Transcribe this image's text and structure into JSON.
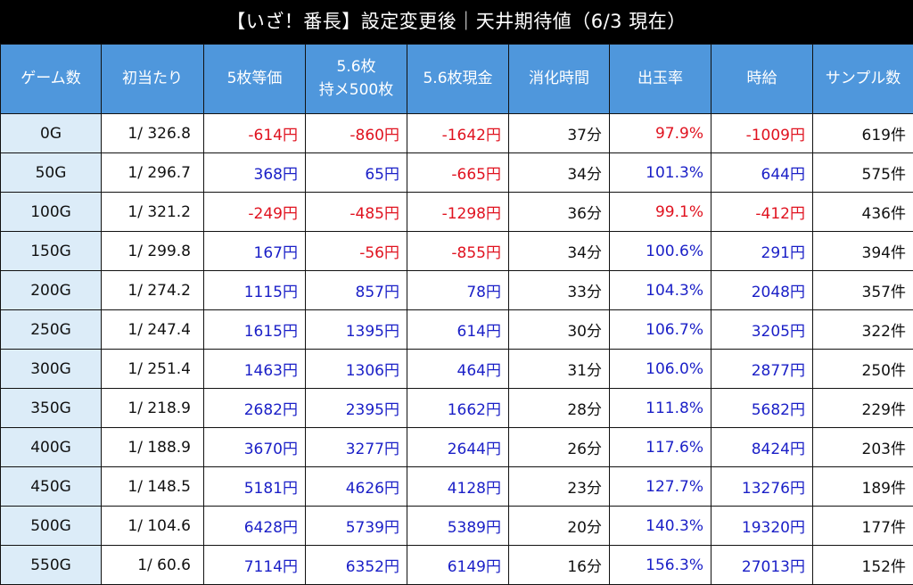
{
  "title": "【いざ！番長】設定変更後｜天井期待値（6/3 現在）",
  "colors": {
    "header_bg": "#4f97dc",
    "first_col_bg": "#dcecf8",
    "negative": "#e0121f",
    "positive": "#1a1fc7"
  },
  "headers": [
    "ゲーム数",
    "初当たり",
    "5枚等価",
    "5.6枚\n持メ500枚",
    "5.6枚現金",
    "消化時間",
    "出玉率",
    "時給",
    "サンプル数"
  ],
  "rows": [
    {
      "g": "0G",
      "p": "1/ 326.8",
      "a": "-614円",
      "b": "-860円",
      "c": "-1642円",
      "t": "37分",
      "r": "97.9%",
      "w": "-1009円",
      "n": "619件"
    },
    {
      "g": "50G",
      "p": "1/ 296.7",
      "a": "368円",
      "b": "65円",
      "c": "-665円",
      "t": "34分",
      "r": "101.3%",
      "w": "644円",
      "n": "575件"
    },
    {
      "g": "100G",
      "p": "1/ 321.2",
      "a": "-249円",
      "b": "-485円",
      "c": "-1298円",
      "t": "36分",
      "r": "99.1%",
      "w": "-412円",
      "n": "436件"
    },
    {
      "g": "150G",
      "p": "1/ 299.8",
      "a": "167円",
      "b": "-56円",
      "c": "-855円",
      "t": "34分",
      "r": "100.6%",
      "w": "291円",
      "n": "394件"
    },
    {
      "g": "200G",
      "p": "1/ 274.2",
      "a": "1115円",
      "b": "857円",
      "c": "78円",
      "t": "33分",
      "r": "104.3%",
      "w": "2048円",
      "n": "357件"
    },
    {
      "g": "250G",
      "p": "1/ 247.4",
      "a": "1615円",
      "b": "1395円",
      "c": "614円",
      "t": "30分",
      "r": "106.7%",
      "w": "3205円",
      "n": "322件"
    },
    {
      "g": "300G",
      "p": "1/ 251.4",
      "a": "1463円",
      "b": "1306円",
      "c": "464円",
      "t": "31分",
      "r": "106.0%",
      "w": "2877円",
      "n": "250件"
    },
    {
      "g": "350G",
      "p": "1/ 218.9",
      "a": "2682円",
      "b": "2395円",
      "c": "1662円",
      "t": "28分",
      "r": "111.8%",
      "w": "5682円",
      "n": "229件"
    },
    {
      "g": "400G",
      "p": "1/ 188.9",
      "a": "3670円",
      "b": "3277円",
      "c": "2644円",
      "t": "26分",
      "r": "117.6%",
      "w": "8424円",
      "n": "203件"
    },
    {
      "g": "450G",
      "p": "1/ 148.5",
      "a": "5181円",
      "b": "4626円",
      "c": "4128円",
      "t": "23分",
      "r": "127.7%",
      "w": "13276円",
      "n": "189件"
    },
    {
      "g": "500G",
      "p": "1/ 104.6",
      "a": "6428円",
      "b": "5739円",
      "c": "5389円",
      "t": "20分",
      "r": "140.3%",
      "w": "19320円",
      "n": "177件"
    },
    {
      "g": "550G",
      "p": "1/ 60.6",
      "a": "7114円",
      "b": "6352円",
      "c": "6149円",
      "t": "16分",
      "r": "156.3%",
      "w": "27013円",
      "n": "152件"
    }
  ]
}
